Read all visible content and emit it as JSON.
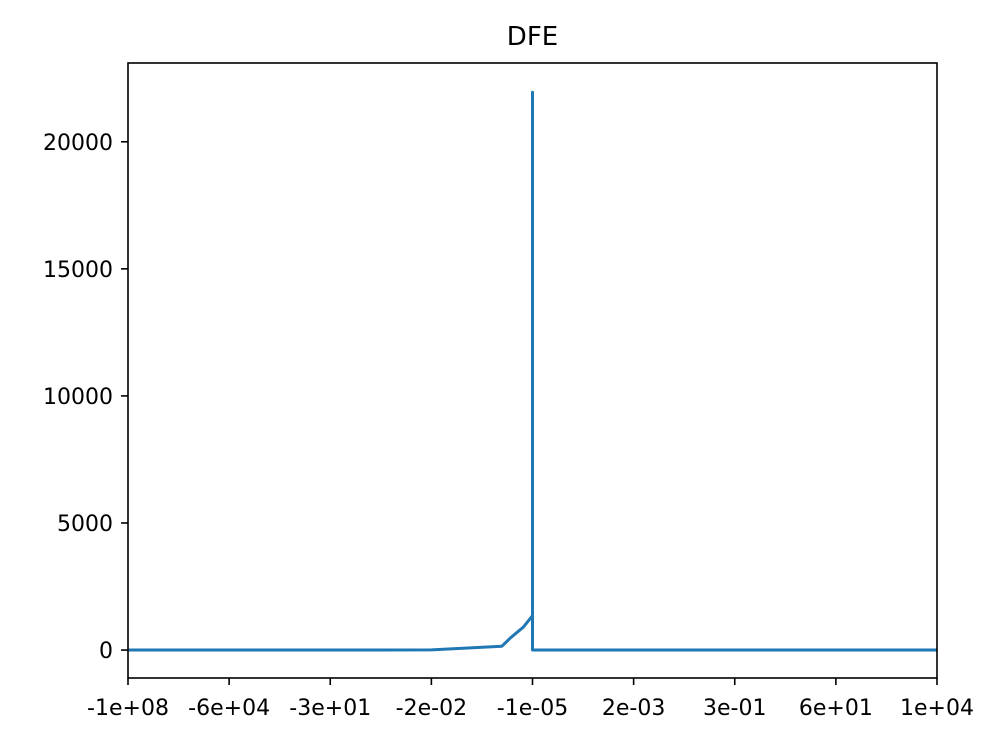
{
  "chart_data": {
    "type": "line",
    "title": "DFE",
    "xlabel": "",
    "ylabel": "",
    "x_scale": "symlog-like",
    "x_tick_labels": [
      "-1e+08",
      "-6e+04",
      "-3e+01",
      "-2e-02",
      "-1e-05",
      "2e-03",
      "3e-01",
      "6e+01",
      "1e+04"
    ],
    "y_ticks": [
      0,
      5000,
      10000,
      15000,
      20000
    ],
    "y_tick_labels": [
      "0",
      "5000",
      "10000",
      "15000",
      "20000"
    ],
    "ylim": [
      -1100,
      23100
    ],
    "grid": false,
    "legend": "none",
    "series_color": "#1f77b4",
    "series": [
      {
        "x": [
          "-1e+08",
          "-6e+04",
          "-3e+01",
          "-2e-02",
          "-1e-04",
          "-5e-05",
          "-2e-05",
          "-1e-05",
          "-1e-05",
          "-1e-05",
          "2e-03",
          "3e-01",
          "6e+01",
          "1e+04"
        ],
        "values": [
          0,
          0,
          0,
          5,
          150,
          500,
          900,
          1350,
          21950,
          0,
          0,
          0,
          0,
          0
        ]
      }
    ]
  }
}
